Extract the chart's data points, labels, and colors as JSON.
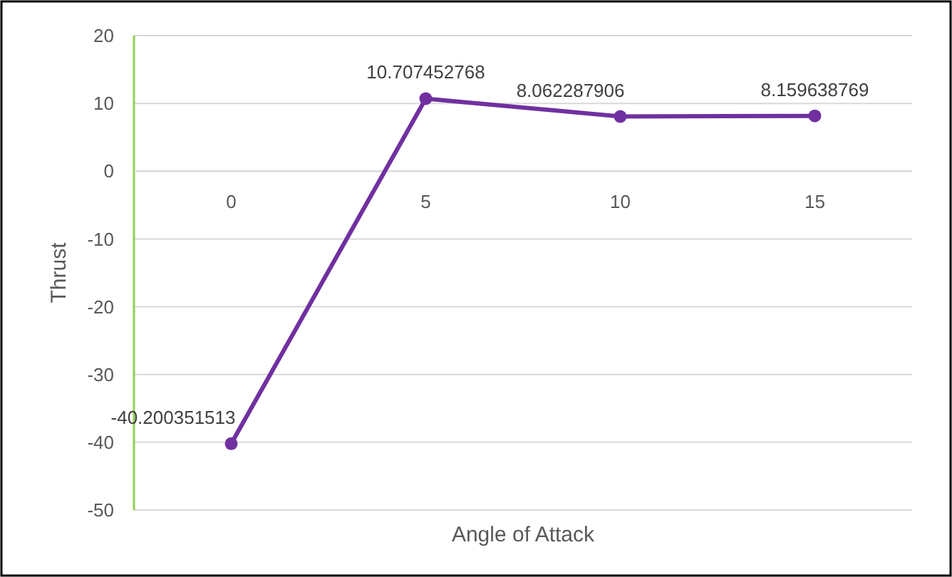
{
  "chart_data": {
    "type": "line",
    "xlabel": "Angle of Attack",
    "ylabel": "Thrust",
    "categories": [
      "0",
      "5",
      "10",
      "15"
    ],
    "series": [
      {
        "color": "#7030a0",
        "values": [
          -40.200351513,
          10.707452768,
          8.062287906,
          8.159638769
        ]
      }
    ],
    "ylim": [
      -50,
      20
    ],
    "yticks": [
      -50,
      -40,
      -30,
      -20,
      -10,
      0,
      10,
      20
    ],
    "grid": "y",
    "marker": "circle",
    "data_labels": true
  }
}
